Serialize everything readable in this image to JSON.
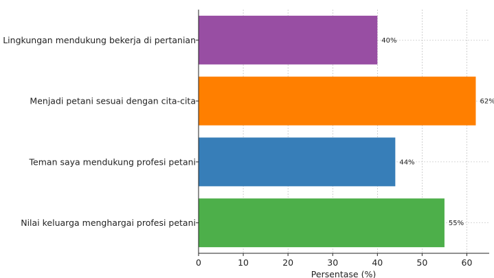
{
  "chart_data": {
    "type": "bar",
    "orientation": "horizontal",
    "categories": [
      "Nilai keluarga menghargai profesi petani",
      "Teman saya mendukung profesi petani",
      "Menjadi petani sesuai dengan cita-cita",
      "Lingkungan mendukung bekerja di pertanian"
    ],
    "values": [
      55,
      44,
      62,
      40
    ],
    "data_labels": [
      "55%",
      "44%",
      "62%",
      "40%"
    ],
    "colors": [
      "#4daf4a",
      "#377eb8",
      "#ff7f00",
      "#984ea3"
    ],
    "title": "",
    "xlabel": "Persentase (%)",
    "ylabel": "",
    "xlim": [
      0,
      65
    ],
    "xticks": [
      0,
      10,
      20,
      30,
      40,
      50,
      60
    ],
    "xtick_labels": [
      "0",
      "10",
      "20",
      "30",
      "40",
      "50",
      "60"
    ],
    "grid": true,
    "legend": "none"
  }
}
